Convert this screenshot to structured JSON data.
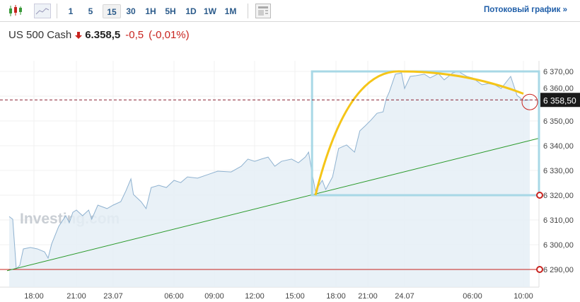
{
  "toolbar": {
    "icons": [
      "candlestick-chart-icon",
      "area-chart-icon",
      "layout-icon"
    ],
    "timeframes": [
      "1",
      "5",
      "15",
      "30",
      "1H",
      "5H",
      "1D",
      "1W",
      "1M"
    ],
    "active_timeframe": "15",
    "stream_label": "Потоковый график »"
  },
  "instrument": {
    "name": "US 500 Cash",
    "direction": "down",
    "price": "6.358,5",
    "change": "-0,5",
    "change_pct": "(-0,01%)"
  },
  "watermark": "Investing.com",
  "colors": {
    "accent": "#1f5ea8",
    "down": "#c8231e",
    "line": "#8fb2d0",
    "fill": "#e5eef6",
    "rect": "#a8d8e6",
    "curve": "#f5c518",
    "trend": "#2a9a2a",
    "level": "#c8231e"
  },
  "chart_data": {
    "type": "area",
    "ylim": [
      6283,
      6374
    ],
    "y_ticks": [
      "6 290,00",
      "6 300,00",
      "6 310,00",
      "6 320,00",
      "6 330,00",
      "6 340,00",
      "6 350,00",
      "6 360,00",
      "6 370,00"
    ],
    "y_tick_values": [
      6290,
      6300,
      6310,
      6320,
      6330,
      6340,
      6350,
      6360,
      6370
    ],
    "x_ticks": [
      "18:00",
      "21:00",
      "23.07",
      "06:00",
      "09:00",
      "12:00",
      "15:00",
      "18:00",
      "21:00",
      "24.07",
      "06:00",
      "10:00"
    ],
    "x_tick_times": [
      "22.07 18:00",
      "22.07 21:00",
      "23.07 00:00",
      "23.07 06:00",
      "23.07 09:00",
      "23.07 12:00",
      "23.07 15:00",
      "23.07 18:00",
      "23.07 21:00",
      "24.07 00:00",
      "24.07 06:00",
      "24.07 10:00"
    ],
    "last_price_label": "6 358,50",
    "last_price": 6358.5,
    "grid": true,
    "series": [
      {
        "points": [
          [
            "22.07 16:15",
            6311.4
          ],
          [
            "22.07 16:30",
            6310.3
          ],
          [
            "22.07 16:45",
            6290.3
          ],
          [
            "22.07 17:00",
            6291.7
          ],
          [
            "22.07 17:15",
            6298.3
          ],
          [
            "22.07 17:45",
            6298.9
          ],
          [
            "22.07 18:15",
            6298.3
          ],
          [
            "22.07 18:45",
            6297.1
          ],
          [
            "22.07 19:00",
            6294.6
          ],
          [
            "22.07 19:15",
            6300.3
          ],
          [
            "22.07 19:45",
            6307.4
          ],
          [
            "22.07 20:15",
            6311.7
          ],
          [
            "22.07 20:30",
            6308.9
          ],
          [
            "22.07 20:45",
            6313.1
          ],
          [
            "22.07 21:00",
            6314
          ],
          [
            "22.07 21:30",
            6311.7
          ],
          [
            "22.07 22:00",
            6314
          ],
          [
            "22.07 22:15",
            6310.3
          ],
          [
            "22.07 22:45",
            6316
          ],
          [
            "22.07 23:30",
            6314.6
          ],
          [
            "23.07 00:00",
            6316
          ],
          [
            "23.07 00:45",
            6317.4
          ],
          [
            "23.07 01:15",
            6321.7
          ],
          [
            "23.07 01:45",
            6326.6
          ],
          [
            "23.07 02:00",
            6320.3
          ],
          [
            "23.07 02:45",
            6317.4
          ],
          [
            "23.07 03:15",
            6314.6
          ],
          [
            "23.07 03:45",
            6323.1
          ],
          [
            "23.07 04:30",
            6324
          ],
          [
            "23.07 05:15",
            6323.1
          ],
          [
            "23.07 06:00",
            6326
          ],
          [
            "23.07 06:30",
            6325.1
          ],
          [
            "23.07 07:00",
            6327.4
          ],
          [
            "23.07 07:45",
            6326.9
          ],
          [
            "23.07 08:30",
            6328.3
          ],
          [
            "23.07 09:15",
            6329.7
          ],
          [
            "23.07 10:15",
            6329.4
          ],
          [
            "23.07 11:00",
            6331.7
          ],
          [
            "23.07 11:30",
            6334.6
          ],
          [
            "23.07 12:00",
            6333.7
          ],
          [
            "23.07 12:30",
            6334.6
          ],
          [
            "23.07 13:00",
            6335.4
          ],
          [
            "23.07 13:30",
            6331.7
          ],
          [
            "23.07 14:00",
            6333.7
          ],
          [
            "23.07 14:45",
            6334.6
          ],
          [
            "23.07 15:15",
            6333.1
          ],
          [
            "23.07 15:45",
            6335.4
          ],
          [
            "23.07 16:00",
            6337.4
          ],
          [
            "23.07 16:15",
            6328.9
          ],
          [
            "23.07 16:30",
            6321.7
          ],
          [
            "23.07 17:00",
            6326
          ],
          [
            "23.07 17:15",
            6322.3
          ],
          [
            "23.07 17:45",
            6327.4
          ],
          [
            "23.07 18:15",
            6338.9
          ],
          [
            "23.07 19:00",
            6340.3
          ],
          [
            "23.07 19:45",
            6337.4
          ],
          [
            "23.07 20:15",
            6346
          ],
          [
            "23.07 20:45",
            6348
          ],
          [
            "23.07 21:15",
            6350.3
          ],
          [
            "23.07 21:45",
            6353.1
          ],
          [
            "23.07 22:15",
            6353.7
          ],
          [
            "23.07 22:30",
            6358.9
          ],
          [
            "23.07 22:45",
            6361.7
          ],
          [
            "23.07 23:15",
            6368.9
          ],
          [
            "23.07 23:45",
            6369.4
          ],
          [
            "24.07 00:00",
            6363.1
          ],
          [
            "24.07 00:30",
            6368
          ],
          [
            "24.07 01:00",
            6368.3
          ],
          [
            "24.07 01:45",
            6368.9
          ],
          [
            "24.07 02:15",
            6367.4
          ],
          [
            "24.07 03:00",
            6369.1
          ],
          [
            "24.07 03:30",
            6366.6
          ],
          [
            "24.07 04:15",
            6369.4
          ],
          [
            "24.07 04:45",
            6370
          ],
          [
            "24.07 05:30",
            6368
          ],
          [
            "24.07 06:00",
            6367.4
          ],
          [
            "24.07 06:45",
            6364.6
          ],
          [
            "24.07 07:15",
            6365.1
          ],
          [
            "24.07 07:45",
            6364.6
          ],
          [
            "24.07 08:15",
            6363.1
          ],
          [
            "24.07 09:00",
            6368
          ],
          [
            "24.07 09:30",
            6360.3
          ],
          [
            "24.07 10:00",
            6358.3
          ],
          [
            "24.07 10:30",
            6358.5
          ]
        ]
      }
    ],
    "annotations": {
      "horizontal_level": 6290,
      "rectangle": {
        "from": "23.07 16:15",
        "price_low": 6320,
        "price_high": 6370
      },
      "trendline": {
        "from": [
          "22.07 16:00",
          6289.5
        ],
        "to_price_right": 6343
      },
      "curve": {
        "from": [
          "23.07 16:30",
          6320
        ],
        "peak": [
          "23.07 23:45",
          6370
        ],
        "to": [
          "24.07 10:00",
          6361
        ]
      }
    }
  }
}
